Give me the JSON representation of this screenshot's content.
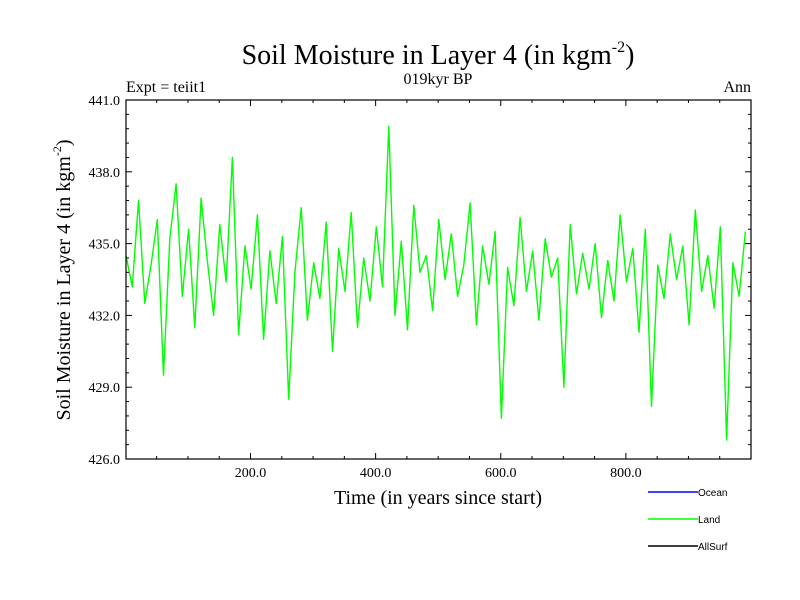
{
  "chart_data": {
    "type": "line",
    "title": "Soil Moisture in Layer 4 (in kgm",
    "title_superscript": "-2",
    "title_suffix": ")",
    "subtitle": "019kyr BP",
    "left_label": "Expt = teiit1",
    "right_label": "Ann",
    "xlabel": "Time (in years since start)",
    "ylabel": "Soil Moisture in Layer 4 (in kgm",
    "ylabel_superscript": "-2",
    "ylabel_suffix": ")",
    "xlim": [
      1,
      1000
    ],
    "ylim": [
      426.0,
      441.0
    ],
    "x_ticks": [
      200.0,
      400.0,
      600.0,
      800.0
    ],
    "x_tick_labels": [
      "200.0",
      "400.0",
      "600.0",
      "800.0"
    ],
    "y_ticks": [
      426.0,
      429.0,
      432.0,
      435.0,
      438.0,
      441.0
    ],
    "y_tick_labels": [
      "426.0",
      "429.0",
      "432.0",
      "435.0",
      "438.0",
      "441.0"
    ],
    "grid": false,
    "legend_position": "bottom-right",
    "legend": [
      {
        "name": "Ocean",
        "color": "#0000ff"
      },
      {
        "name": "Land",
        "color": "#00ff00"
      },
      {
        "name": "AllSurf",
        "color": "#000000"
      }
    ],
    "series": [
      {
        "name": "Land",
        "color": "#00ff00",
        "x_start": 1,
        "x_step": 10,
        "values": [
          434.5,
          433.2,
          436.8,
          432.5,
          434.1,
          436.0,
          429.5,
          435.2,
          437.5,
          432.8,
          435.6,
          431.5,
          436.9,
          434.3,
          432.0,
          435.8,
          433.4,
          438.6,
          431.2,
          434.9,
          433.1,
          436.2,
          431.0,
          434.7,
          432.5,
          435.3,
          428.5,
          433.8,
          436.5,
          431.8,
          434.2,
          432.7,
          435.9,
          430.5,
          434.8,
          433.0,
          436.3,
          431.5,
          434.4,
          432.6,
          435.7,
          433.2,
          439.9,
          432.0,
          435.1,
          431.4,
          436.6,
          433.8,
          434.5,
          432.2,
          436.0,
          433.5,
          435.4,
          432.8,
          434.1,
          436.7,
          431.6,
          434.9,
          433.3,
          435.5,
          427.7,
          434.0,
          432.4,
          436.1,
          433.0,
          434.7,
          431.8,
          435.2,
          433.6,
          434.4,
          429.0,
          435.8,
          432.9,
          434.6,
          433.1,
          435.0,
          431.9,
          434.3,
          432.6,
          436.2,
          433.4,
          434.8,
          431.3,
          435.6,
          428.2,
          434.1,
          432.7,
          435.4,
          433.5,
          434.9,
          431.6,
          436.4,
          433.0,
          434.5,
          432.3,
          435.7,
          426.8,
          434.2,
          432.8,
          435.5
        ]
      }
    ]
  }
}
